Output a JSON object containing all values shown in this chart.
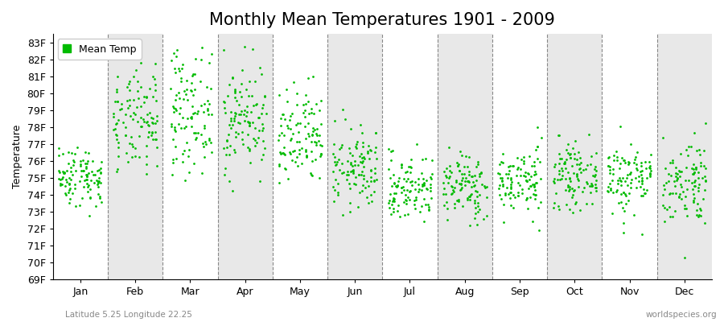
{
  "title": "Monthly Mean Temperatures 1901 - 2009",
  "ylabel": "Temperature",
  "ylim": [
    69,
    83.5
  ],
  "yticks": [
    69,
    70,
    71,
    72,
    73,
    74,
    75,
    76,
    77,
    78,
    79,
    80,
    81,
    82,
    83
  ],
  "ytick_labels": [
    "69F",
    "70F",
    "71F",
    "72F",
    "73F",
    "74F",
    "75F",
    "76F",
    "77F",
    "78F",
    "79F",
    "80F",
    "81F",
    "82F",
    "83F"
  ],
  "months": [
    "Jan",
    "Feb",
    "Mar",
    "Apr",
    "May",
    "Jun",
    "Jul",
    "Aug",
    "Sep",
    "Oct",
    "Nov",
    "Dec"
  ],
  "month_centers": [
    0.5,
    1.5,
    2.5,
    3.5,
    4.5,
    5.5,
    6.5,
    7.5,
    8.5,
    9.5,
    10.5,
    11.5
  ],
  "dot_color": "#00BB00",
  "background_color": "#FFFFFF",
  "band_colors": [
    "#FFFFFF",
    "#E8E8E8"
  ],
  "title_fontsize": 15,
  "axis_fontsize": 9,
  "label_fontsize": 9,
  "legend_label": "Mean Temp",
  "footer_left": "Latitude 5.25 Longitude 22.25",
  "footer_right": "worldspecies.org",
  "n_years": 109,
  "monthly_means": [
    75.1,
    78.2,
    79.0,
    78.5,
    77.2,
    75.5,
    74.4,
    74.5,
    74.8,
    75.1,
    75.0,
    74.8
  ],
  "monthly_stds": [
    0.9,
    1.5,
    1.8,
    1.6,
    1.5,
    1.2,
    1.0,
    1.0,
    1.0,
    0.9,
    1.1,
    1.3
  ],
  "seed": 42
}
